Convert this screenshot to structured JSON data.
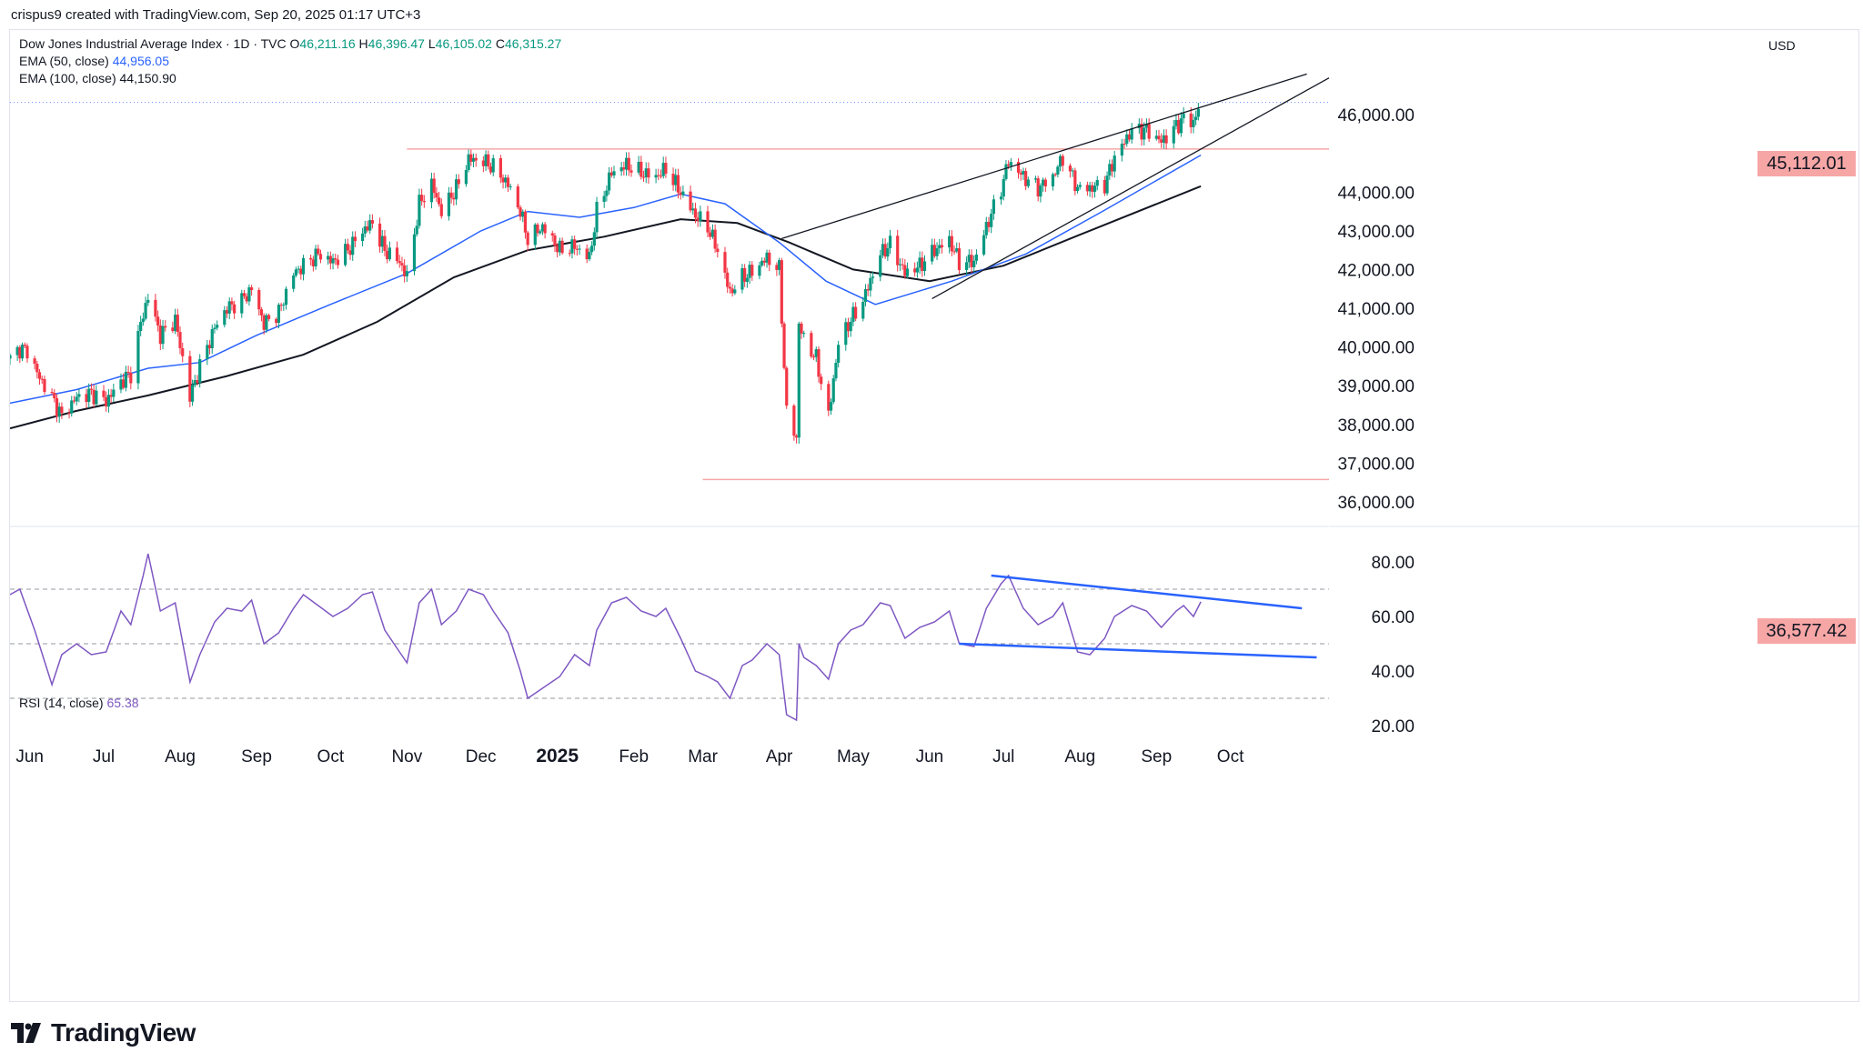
{
  "credit": "crispus9 created with TradingView.com, Sep 20, 2025 01:17 UTC+3",
  "legend": {
    "symbol": "Dow Jones Industrial Average Index · 1D · TVC",
    "open_label": "O",
    "open": "46,211.16",
    "high_label": "H",
    "high": "46,396.47",
    "low_label": "L",
    "low": "46,105.02",
    "close_label": "C",
    "close": "46,315.27",
    "ema50_label": "EMA (50, close)",
    "ema50_value": "44,956.05",
    "ema100_label": "EMA (100, close)",
    "ema100_value": "44,150.90",
    "rsi_label": "RSI (14, close)",
    "rsi_value": "65.38"
  },
  "currency": "USD",
  "logo_text": "TradingView",
  "colors": {
    "up": "#089981",
    "down": "#f23645",
    "ema50": "#2962ff",
    "ema100": "#131722",
    "rsi": "#7e57c2",
    "trend": "#2962ff",
    "level": "#f7a6a6"
  },
  "chart_data": [
    {
      "type": "candlestick",
      "title": "Dow Jones Industrial Average Index · 1D · TVC",
      "y_unit": "USD",
      "ylim": [
        35600,
        47200
      ],
      "y_ticks": [
        "36,000.00",
        "37,000.00",
        "38,000.00",
        "39,000.00",
        "40,000.00",
        "41,000.00",
        "42,000.00",
        "43,000.00",
        "44,000.00",
        "46,000.00"
      ],
      "y_tick_values": [
        36000,
        37000,
        38000,
        39000,
        40000,
        41000,
        42000,
        43000,
        44000,
        46000
      ],
      "x_ticks": [
        "Jun",
        "Jul",
        "Aug",
        "Sep",
        "Oct",
        "Nov",
        "Dec",
        "2025",
        "Feb",
        "Mar",
        "Apr",
        "May",
        "Jun",
        "Jul",
        "Aug",
        "Sep",
        "Oct"
      ],
      "x_tick_dates": [
        "2024-06-01",
        "2024-07-01",
        "2024-08-01",
        "2024-09-01",
        "2024-10-01",
        "2024-11-01",
        "2024-12-01",
        "2025-01-01",
        "2025-02-01",
        "2025-03-01",
        "2025-04-01",
        "2025-05-01",
        "2025-06-01",
        "2025-07-01",
        "2025-08-01",
        "2025-09-01",
        "2025-10-01"
      ],
      "x_range": [
        "2024-05-24",
        "2025-11-10"
      ],
      "close_series": [
        [
          "2024-05-24",
          39700
        ],
        [
          "2024-05-28",
          39950
        ],
        [
          "2024-05-31",
          39900
        ],
        [
          "2024-06-05",
          39200
        ],
        [
          "2024-06-10",
          38700
        ],
        [
          "2024-06-14",
          38200
        ],
        [
          "2024-06-20",
          38700
        ],
        [
          "2024-06-26",
          38800
        ],
        [
          "2024-07-02",
          38600
        ],
        [
          "2024-07-08",
          39100
        ],
        [
          "2024-07-12",
          39300
        ],
        [
          "2024-07-16",
          40600
        ],
        [
          "2024-07-19",
          41300
        ],
        [
          "2024-07-24",
          40300
        ],
        [
          "2024-07-30",
          40700
        ],
        [
          "2024-08-05",
          38700
        ],
        [
          "2024-08-09",
          39500
        ],
        [
          "2024-08-15",
          40500
        ],
        [
          "2024-08-20",
          41000
        ],
        [
          "2024-08-26",
          41200
        ],
        [
          "2024-08-30",
          41500
        ],
        [
          "2024-09-04",
          40600
        ],
        [
          "2024-09-10",
          40900
        ],
        [
          "2024-09-16",
          41900
        ],
        [
          "2024-09-20",
          42100
        ],
        [
          "2024-09-26",
          42400
        ],
        [
          "2024-10-02",
          42200
        ],
        [
          "2024-10-08",
          42500
        ],
        [
          "2024-10-14",
          43000
        ],
        [
          "2024-10-18",
          43200
        ],
        [
          "2024-10-23",
          42500
        ],
        [
          "2024-10-29",
          42200
        ],
        [
          "2024-11-01",
          41800
        ],
        [
          "2024-11-06",
          43700
        ],
        [
          "2024-11-11",
          44200
        ],
        [
          "2024-11-15",
          43500
        ],
        [
          "2024-11-21",
          44100
        ],
        [
          "2024-11-26",
          44850
        ],
        [
          "2024-12-02",
          44800
        ],
        [
          "2024-12-06",
          44650
        ],
        [
          "2024-12-12",
          44200
        ],
        [
          "2024-12-17",
          43500
        ],
        [
          "2024-12-20",
          42800
        ],
        [
          "2024-12-26",
          43100
        ],
        [
          "2025-01-02",
          42500
        ],
        [
          "2025-01-08",
          42600
        ],
        [
          "2025-01-14",
          42300
        ],
        [
          "2025-01-17",
          43500
        ],
        [
          "2025-01-23",
          44500
        ],
        [
          "2025-01-29",
          44700
        ],
        [
          "2025-02-04",
          44500
        ],
        [
          "2025-02-10",
          44400
        ],
        [
          "2025-02-14",
          44600
        ],
        [
          "2025-02-20",
          44000
        ],
        [
          "2025-02-26",
          43400
        ],
        [
          "2025-03-03",
          43100
        ],
        [
          "2025-03-07",
          42500
        ],
        [
          "2025-03-12",
          41400
        ],
        [
          "2025-03-17",
          41800
        ],
        [
          "2025-03-21",
          41950
        ],
        [
          "2025-03-27",
          42300
        ],
        [
          "2025-04-01",
          42000
        ],
        [
          "2025-04-04",
          38300
        ],
        [
          "2025-04-08",
          37650
        ],
        [
          "2025-04-09",
          40600
        ],
        [
          "2025-04-11",
          40200
        ],
        [
          "2025-04-16",
          39700
        ],
        [
          "2025-04-21",
          38200
        ],
        [
          "2025-04-25",
          40100
        ],
        [
          "2025-04-30",
          40700
        ],
        [
          "2025-05-05",
          41200
        ],
        [
          "2025-05-12",
          42400
        ],
        [
          "2025-05-16",
          42650
        ],
        [
          "2025-05-22",
          41900
        ],
        [
          "2025-05-28",
          42100
        ],
        [
          "2025-06-03",
          42500
        ],
        [
          "2025-06-09",
          42750
        ],
        [
          "2025-06-13",
          42200
        ],
        [
          "2025-06-19",
          42200
        ],
        [
          "2025-06-24",
          43100
        ],
        [
          "2025-06-30",
          44100
        ],
        [
          "2025-07-03",
          44800
        ],
        [
          "2025-07-09",
          44400
        ],
        [
          "2025-07-15",
          44100
        ],
        [
          "2025-07-21",
          44400
        ],
        [
          "2025-07-25",
          44900
        ],
        [
          "2025-07-31",
          44100
        ],
        [
          "2025-08-05",
          44100
        ],
        [
          "2025-08-11",
          44200
        ],
        [
          "2025-08-15",
          44900
        ],
        [
          "2025-08-22",
          45600
        ],
        [
          "2025-08-28",
          45600
        ],
        [
          "2025-09-03",
          45300
        ],
        [
          "2025-09-09",
          45700
        ],
        [
          "2025-09-12",
          45900
        ],
        [
          "2025-09-16",
          45800
        ],
        [
          "2025-09-19",
          46315
        ]
      ],
      "ema50_series": [
        [
          "2024-05-24",
          38550
        ],
        [
          "2024-06-20",
          38900
        ],
        [
          "2024-07-19",
          39450
        ],
        [
          "2024-08-09",
          39600
        ],
        [
          "2024-09-01",
          40300
        ],
        [
          "2024-10-01",
          41100
        ],
        [
          "2024-11-01",
          41900
        ],
        [
          "2024-12-01",
          43000
        ],
        [
          "2024-12-20",
          43500
        ],
        [
          "2025-01-10",
          43350
        ],
        [
          "2025-02-01",
          43600
        ],
        [
          "2025-02-20",
          43950
        ],
        [
          "2025-03-10",
          43700
        ],
        [
          "2025-04-01",
          42700
        ],
        [
          "2025-04-20",
          41700
        ],
        [
          "2025-05-10",
          41100
        ],
        [
          "2025-06-10",
          41700
        ],
        [
          "2025-07-10",
          42400
        ],
        [
          "2025-08-10",
          43500
        ],
        [
          "2025-09-19",
          44956
        ]
      ],
      "ema100_series": [
        [
          "2024-05-24",
          37900
        ],
        [
          "2024-06-20",
          38350
        ],
        [
          "2024-07-19",
          38750
        ],
        [
          "2024-08-20",
          39250
        ],
        [
          "2024-09-20",
          39800
        ],
        [
          "2024-10-20",
          40650
        ],
        [
          "2024-11-20",
          41800
        ],
        [
          "2024-12-20",
          42500
        ],
        [
          "2025-01-20",
          42850
        ],
        [
          "2025-02-20",
          43300
        ],
        [
          "2025-03-15",
          43200
        ],
        [
          "2025-04-05",
          42700
        ],
        [
          "2025-05-01",
          42000
        ],
        [
          "2025-06-01",
          41700
        ],
        [
          "2025-07-01",
          42100
        ],
        [
          "2025-08-01",
          42900
        ],
        [
          "2025-09-19",
          44151
        ]
      ],
      "levels": [
        {
          "label": "45,112.01",
          "value": 45112.01,
          "from": "2024-11-01"
        },
        {
          "label": "36,577.42",
          "value": 36577.42,
          "from": "2025-03-01"
        }
      ],
      "trendlines": [
        {
          "from": [
            "2025-04-02",
            42800
          ],
          "to": [
            "2025-11-01",
            47050
          ]
        },
        {
          "from": [
            "2025-06-02",
            41250
          ],
          "to": [
            "2025-11-10",
            46950
          ]
        }
      ],
      "current_close": 46315.27,
      "period_low": 36577.42
    },
    {
      "type": "line",
      "title": "RSI (14, close)",
      "ylim": [
        15,
        90
      ],
      "y_ticks": [
        "20.00",
        "40.00",
        "60.00",
        "80.00"
      ],
      "y_tick_values": [
        20,
        40,
        60,
        80
      ],
      "bands": [
        70,
        50,
        30
      ],
      "series": [
        {
          "name": "RSI (14, close)",
          "values": [
            [
              "2024-05-24",
              68
            ],
            [
              "2024-05-28",
              70
            ],
            [
              "2024-06-03",
              55
            ],
            [
              "2024-06-10",
              35
            ],
            [
              "2024-06-14",
              46
            ],
            [
              "2024-06-20",
              50
            ],
            [
              "2024-06-26",
              46
            ],
            [
              "2024-07-02",
              47
            ],
            [
              "2024-07-08",
              62
            ],
            [
              "2024-07-12",
              57
            ],
            [
              "2024-07-17",
              75
            ],
            [
              "2024-07-19",
              83
            ],
            [
              "2024-07-24",
              62
            ],
            [
              "2024-07-30",
              65
            ],
            [
              "2024-08-05",
              36
            ],
            [
              "2024-08-09",
              46
            ],
            [
              "2024-08-15",
              58
            ],
            [
              "2024-08-20",
              63
            ],
            [
              "2024-08-26",
              62
            ],
            [
              "2024-08-30",
              66
            ],
            [
              "2024-09-04",
              50
            ],
            [
              "2024-09-10",
              54
            ],
            [
              "2024-09-16",
              63
            ],
            [
              "2024-09-20",
              68
            ],
            [
              "2024-09-26",
              64
            ],
            [
              "2024-10-02",
              60
            ],
            [
              "2024-10-08",
              63
            ],
            [
              "2024-10-14",
              68
            ],
            [
              "2024-10-18",
              69
            ],
            [
              "2024-10-23",
              55
            ],
            [
              "2024-10-29",
              47
            ],
            [
              "2024-11-01",
              43
            ],
            [
              "2024-11-06",
              65
            ],
            [
              "2024-11-11",
              70
            ],
            [
              "2024-11-15",
              57
            ],
            [
              "2024-11-21",
              62
            ],
            [
              "2024-11-26",
              70
            ],
            [
              "2024-12-02",
              68
            ],
            [
              "2024-12-06",
              62
            ],
            [
              "2024-12-12",
              54
            ],
            [
              "2024-12-17",
              40
            ],
            [
              "2024-12-20",
              30
            ],
            [
              "2025-01-02",
              38
            ],
            [
              "2025-01-08",
              46
            ],
            [
              "2025-01-14",
              42
            ],
            [
              "2025-01-17",
              55
            ],
            [
              "2025-01-23",
              65
            ],
            [
              "2025-01-29",
              67
            ],
            [
              "2025-02-04",
              62
            ],
            [
              "2025-02-10",
              60
            ],
            [
              "2025-02-14",
              63
            ],
            [
              "2025-02-20",
              52
            ],
            [
              "2025-02-26",
              40
            ],
            [
              "2025-03-03",
              38
            ],
            [
              "2025-03-07",
              36
            ],
            [
              "2025-03-12",
              30
            ],
            [
              "2025-03-17",
              42
            ],
            [
              "2025-03-21",
              44
            ],
            [
              "2025-03-27",
              50
            ],
            [
              "2025-04-01",
              46
            ],
            [
              "2025-04-04",
              24
            ],
            [
              "2025-04-08",
              22
            ],
            [
              "2025-04-09",
              50
            ],
            [
              "2025-04-11",
              45
            ],
            [
              "2025-04-16",
              42
            ],
            [
              "2025-04-21",
              37
            ],
            [
              "2025-04-25",
              50
            ],
            [
              "2025-04-30",
              55
            ],
            [
              "2025-05-05",
              57
            ],
            [
              "2025-05-12",
              65
            ],
            [
              "2025-05-16",
              64
            ],
            [
              "2025-05-22",
              52
            ],
            [
              "2025-05-28",
              56
            ],
            [
              "2025-06-03",
              58
            ],
            [
              "2025-06-09",
              62
            ],
            [
              "2025-06-13",
              50
            ],
            [
              "2025-06-19",
              49
            ],
            [
              "2025-06-24",
              63
            ],
            [
              "2025-06-30",
              72
            ],
            [
              "2025-07-03",
              75
            ],
            [
              "2025-07-09",
              63
            ],
            [
              "2025-07-15",
              57
            ],
            [
              "2025-07-21",
              60
            ],
            [
              "2025-07-25",
              65
            ],
            [
              "2025-07-31",
              47
            ],
            [
              "2025-08-05",
              46
            ],
            [
              "2025-08-11",
              52
            ],
            [
              "2025-08-15",
              60
            ],
            [
              "2025-08-22",
              64
            ],
            [
              "2025-08-28",
              62
            ],
            [
              "2025-09-03",
              56
            ],
            [
              "2025-09-09",
              62
            ],
            [
              "2025-09-12",
              64
            ],
            [
              "2025-09-16",
              60
            ],
            [
              "2025-09-19",
              65.38
            ]
          ]
        }
      ],
      "trendlines": [
        {
          "from": [
            "2025-06-26",
            75
          ],
          "to": [
            "2025-10-30",
            63
          ]
        },
        {
          "from": [
            "2025-06-13",
            50
          ],
          "to": [
            "2025-11-05",
            45
          ]
        }
      ]
    }
  ]
}
